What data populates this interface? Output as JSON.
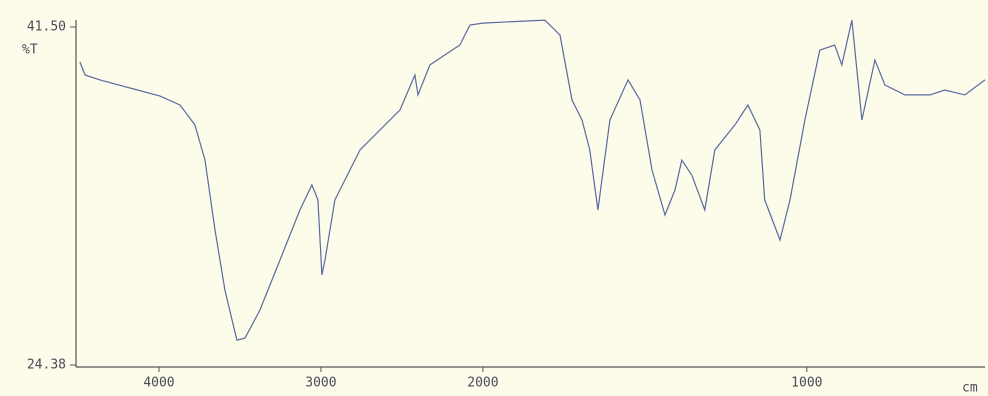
{
  "chart_data": {
    "type": "line",
    "y_label": "%T",
    "x_label": "cm",
    "xlim": [
      4500,
      450
    ],
    "x_scale_break": {
      "value": 2000,
      "factor": 2
    },
    "ylim": [
      24.38,
      41.5
    ],
    "yticks": [
      24.38,
      {
        "value": 41.5,
        "label": "41.50"
      }
    ],
    "xticks": [
      4000,
      3000,
      2000,
      1000
    ],
    "series": [
      {
        "name": "%T",
        "color": "#5a6aa0",
        "x": [
          4488,
          4457,
          4364,
          4179,
          3994,
          3870,
          3778,
          3716,
          3654,
          3593,
          3519,
          3469,
          3377,
          3253,
          3130,
          3056,
          3019,
          2994,
          2975,
          2914,
          2759,
          2512,
          2420,
          2401,
          2327,
          2142,
          2080,
          2000,
          1809,
          1762,
          1725,
          1694,
          1670,
          1645,
          1608,
          1552,
          1515,
          1478,
          1438,
          1407,
          1386,
          1355,
          1315,
          1284,
          1222,
          1182,
          1145,
          1130,
          1083,
          1052,
          1006,
          960,
          914,
          892,
          861,
          830,
          790,
          759,
          697,
          620,
          574,
          512,
          450
        ],
        "values": [
          39.73,
          39.07,
          38.82,
          38.41,
          38.0,
          37.55,
          36.54,
          34.76,
          31.22,
          28.18,
          25.64,
          25.74,
          27.16,
          29.7,
          32.23,
          33.5,
          32.74,
          28.94,
          29.7,
          32.74,
          35.27,
          37.3,
          39.07,
          38.06,
          39.58,
          40.59,
          41.6,
          41.7,
          41.85,
          41.09,
          37.8,
          36.79,
          35.27,
          32.23,
          36.79,
          38.82,
          37.8,
          34.26,
          31.98,
          33.25,
          34.76,
          34.0,
          32.23,
          35.27,
          36.54,
          37.55,
          36.28,
          32.74,
          30.71,
          32.74,
          36.79,
          40.33,
          40.59,
          39.58,
          41.85,
          36.79,
          39.83,
          38.56,
          38.06,
          38.06,
          38.31,
          38.06,
          38.82
        ]
      }
    ]
  }
}
